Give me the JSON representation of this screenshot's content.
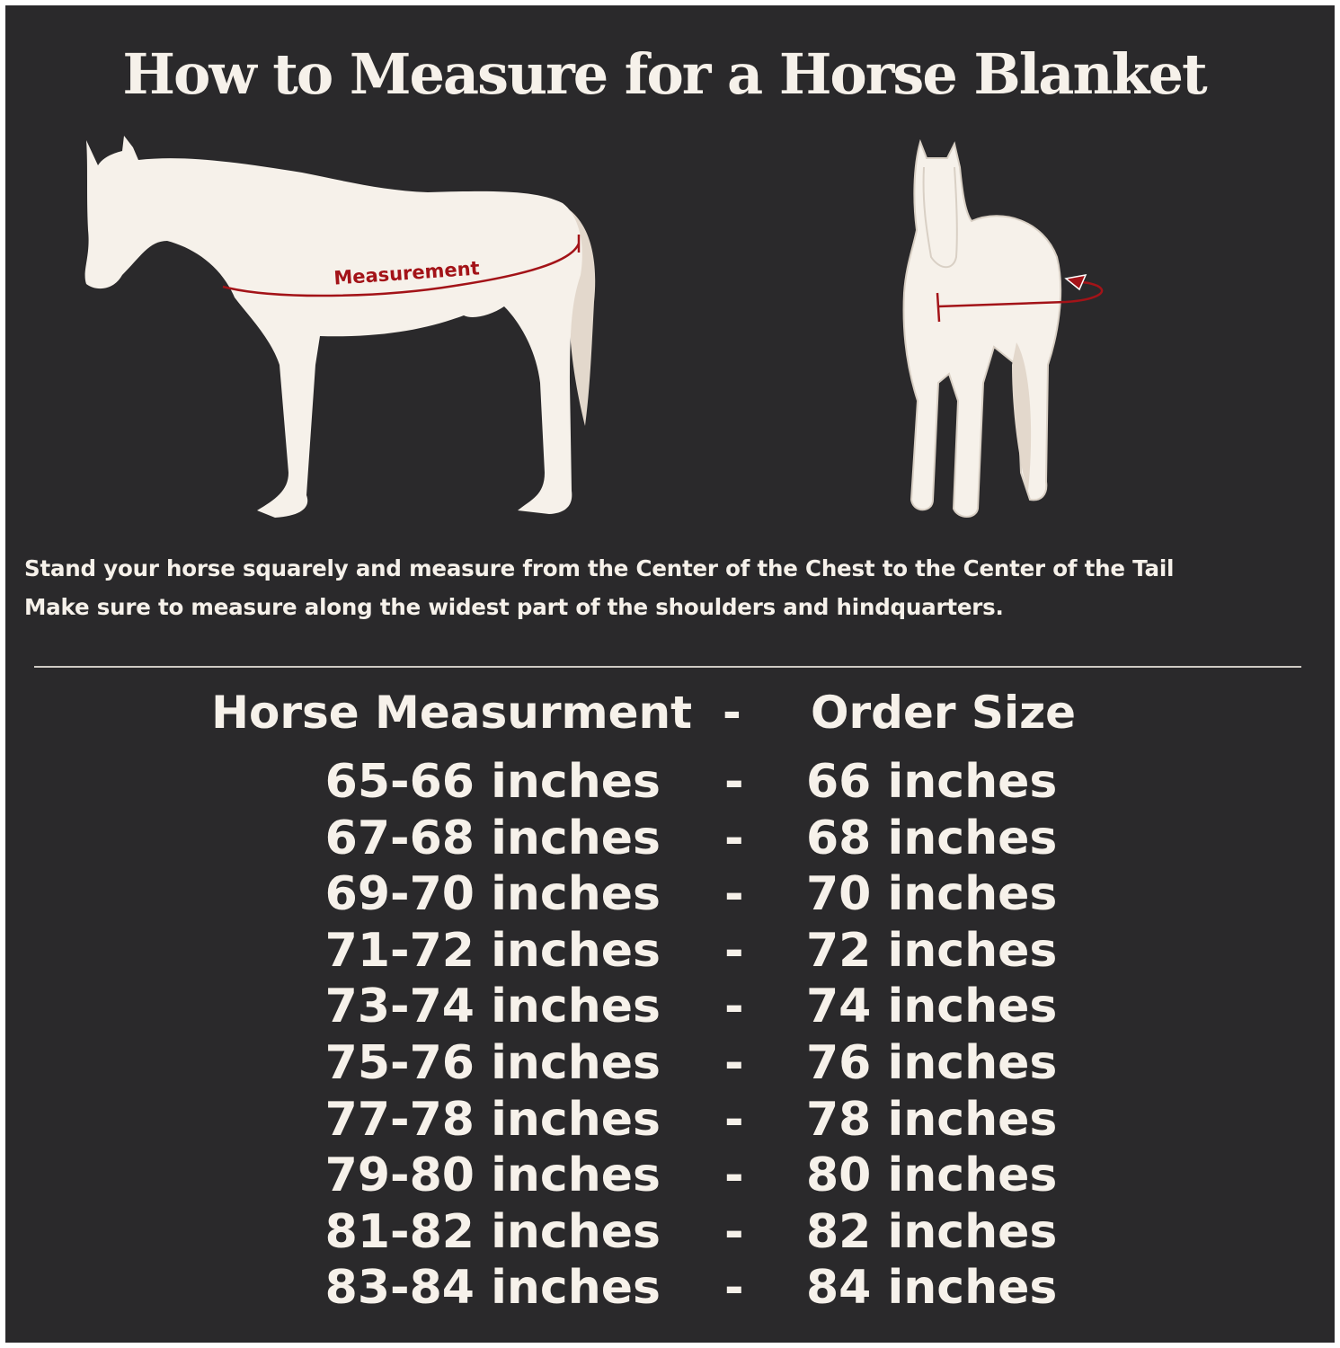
{
  "title": "How to Measure for a Horse Blanket",
  "side_view_label": "Measurement",
  "instructions": [
    "Stand your horse squarely and measure from the Center of the Chest to the Center of the Tail",
    "Make sure to measure along the widest part of the shoulders and hindquarters."
  ],
  "table": {
    "headers": {
      "measurement": "Horse Measurment",
      "separator": "-",
      "size": "Order Size"
    },
    "rows": [
      {
        "measurement": "65-66 inches",
        "separator": "-",
        "size": "66 inches"
      },
      {
        "measurement": "67-68 inches",
        "separator": "-",
        "size": "68 inches"
      },
      {
        "measurement": "69-70 inches",
        "separator": "-",
        "size": "70 inches"
      },
      {
        "measurement": "71-72 inches",
        "separator": "-",
        "size": "72 inches"
      },
      {
        "measurement": "73-74 inches",
        "separator": "-",
        "size": "74 inches"
      },
      {
        "measurement": "75-76 inches",
        "separator": "-",
        "size": "76 inches"
      },
      {
        "measurement": "77-78 inches",
        "separator": "-",
        "size": "78 inches"
      },
      {
        "measurement": "79-80 inches",
        "separator": "-",
        "size": "80 inches"
      },
      {
        "measurement": "81-82 inches",
        "separator": "-",
        "size": "82 inches"
      },
      {
        "measurement": "83-84 inches",
        "separator": "-",
        "size": "84 inches"
      }
    ]
  },
  "colors": {
    "background": "#2a292b",
    "text": "#f6f1ea",
    "accent": "#a31318",
    "tail": "#e3d8cc"
  }
}
